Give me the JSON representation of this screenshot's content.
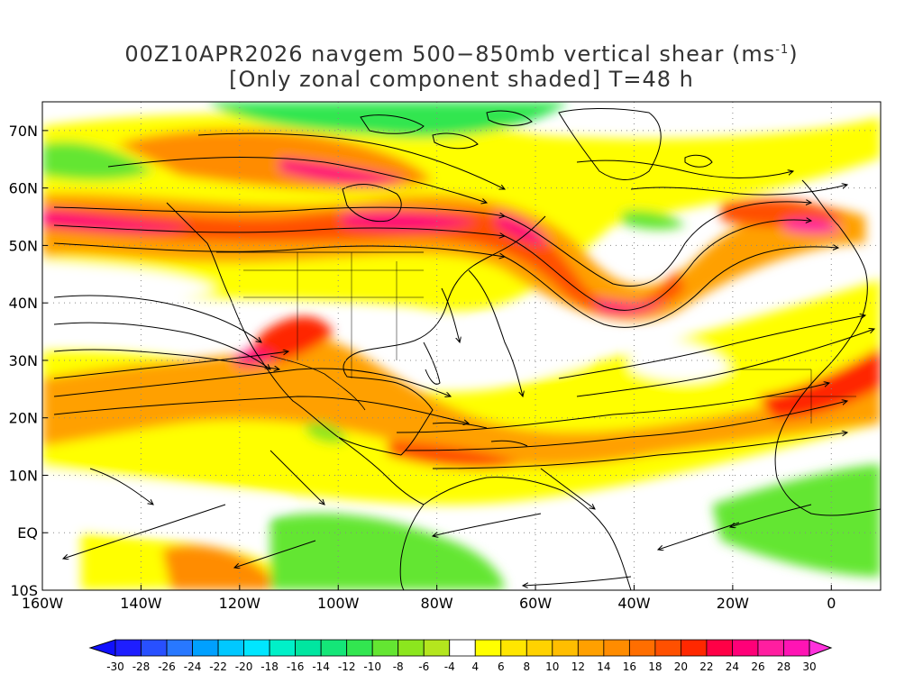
{
  "title": {
    "line1_prefix": "00Z10APR2026 navgem 500−850mb vertical shear (ms",
    "line1_sup": "-1",
    "line1_suffix": ")",
    "line2": "[Only zonal component shaded] T=48 h"
  },
  "map": {
    "lon_range": [
      -160,
      10
    ],
    "lat_range": [
      -10,
      75
    ],
    "lat_labels": [
      "70N",
      "60N",
      "50N",
      "40N",
      "30N",
      "20N",
      "10N",
      "EQ",
      "10S"
    ],
    "lat_values": [
      70,
      60,
      50,
      40,
      30,
      20,
      10,
      0,
      -10
    ],
    "lon_labels": [
      "160W",
      "140W",
      "120W",
      "100W",
      "80W",
      "60W",
      "40W",
      "20W",
      "0"
    ],
    "lon_values": [
      -160,
      -140,
      -120,
      -100,
      -80,
      -60,
      -40,
      -20,
      0
    ],
    "grid": "dotted"
  },
  "colorbar": {
    "labels": [
      "-30",
      "-28",
      "-26",
      "-24",
      "-22",
      "-20",
      "-18",
      "-16",
      "-14",
      "-12",
      "-10",
      "-8",
      "-6",
      "-4",
      "4",
      "6",
      "8",
      "10",
      "12",
      "14",
      "16",
      "18",
      "20",
      "22",
      "24",
      "26",
      "28",
      "30"
    ],
    "colors": [
      "#1e1eff",
      "#2850ff",
      "#2878ff",
      "#00a0ff",
      "#00c8ff",
      "#00e6ff",
      "#00f0c8",
      "#00e6a0",
      "#14e678",
      "#32e650",
      "#64e632",
      "#8ce61e",
      "#b4e61e",
      "#ffffff",
      "#ffff00",
      "#ffe600",
      "#ffd200",
      "#ffbe00",
      "#ffa000",
      "#ff8c00",
      "#ff6e00",
      "#ff5000",
      "#ff2800",
      "#ff0046",
      "#ff0078",
      "#ff1ea0",
      "#ff14b4"
    ],
    "arrow_left_color": "#1010ff",
    "arrow_right_color": "#ff32dc"
  },
  "colors": {
    "weak": "#ffff00",
    "moderate": "#ffbe00",
    "strong": "#ff6e00",
    "very_strong": "#ff0078",
    "easterly": "#64e632"
  }
}
